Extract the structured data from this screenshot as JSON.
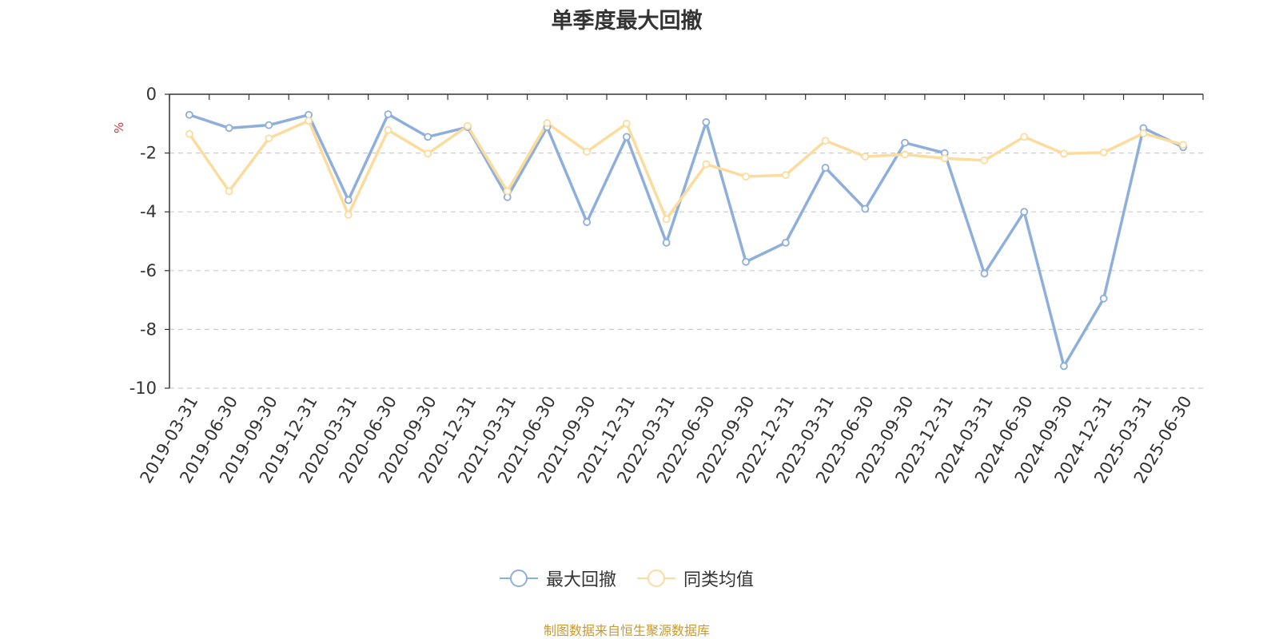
{
  "chart_data": {
    "type": "line",
    "title": "单季度最大回撤",
    "ylabel": "%",
    "xlabel": "",
    "ylim": [
      -10,
      0
    ],
    "yticks": [
      0,
      -2,
      -4,
      -6,
      -8,
      -10
    ],
    "grid": true,
    "legend_position": "bottom-center",
    "categories": [
      "2019-03-31",
      "2019-06-30",
      "2019-09-30",
      "2019-12-31",
      "2020-03-31",
      "2020-06-30",
      "2020-09-30",
      "2020-12-31",
      "2021-03-31",
      "2021-06-30",
      "2021-09-30",
      "2021-12-31",
      "2022-03-31",
      "2022-06-30",
      "2022-09-30",
      "2022-12-31",
      "2023-03-31",
      "2023-06-30",
      "2023-09-30",
      "2023-12-31",
      "2024-03-31",
      "2024-06-30",
      "2024-09-30",
      "2024-12-31",
      "2025-03-31",
      "2025-06-30"
    ],
    "series": [
      {
        "name": "最大回撤",
        "color": "#8eaedb",
        "values": [
          -0.7,
          -1.15,
          -1.05,
          -0.7,
          -3.6,
          -0.68,
          -1.45,
          -1.12,
          -3.5,
          -1.12,
          -4.35,
          -1.45,
          -5.05,
          -0.95,
          -5.7,
          -5.05,
          -2.5,
          -3.9,
          -1.65,
          -2.0,
          -6.1,
          -4.0,
          -9.25,
          -6.95,
          -1.15,
          -1.8
        ]
      },
      {
        "name": "同类均值",
        "color": "#fcdc9c",
        "values": [
          -1.35,
          -3.3,
          -1.5,
          -0.9,
          -4.1,
          -1.22,
          -2.02,
          -1.08,
          -3.3,
          -0.98,
          -1.95,
          -1.0,
          -4.25,
          -2.38,
          -2.8,
          -2.75,
          -1.58,
          -2.12,
          -2.05,
          -2.18,
          -2.25,
          -1.45,
          -2.02,
          -1.98,
          -1.33,
          -1.72
        ]
      }
    ]
  },
  "source_note": "制图数据来自恒生聚源数据库"
}
